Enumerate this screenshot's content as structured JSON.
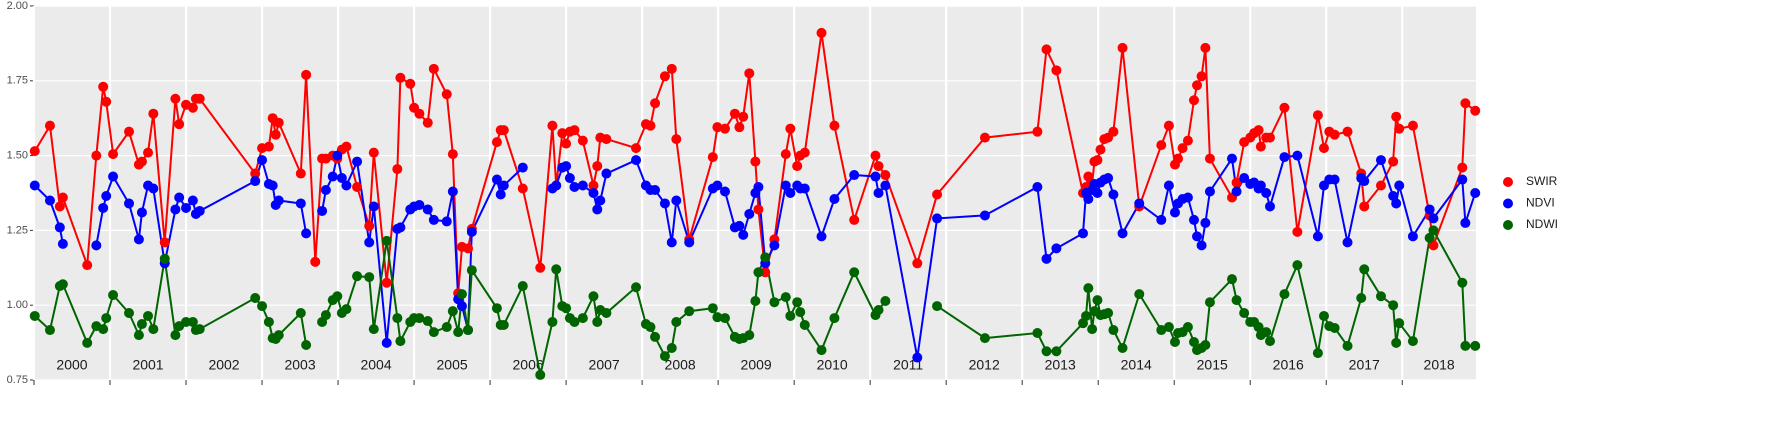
{
  "chart_data": {
    "type": "line",
    "x": [
      2000.01,
      2000.21,
      2000.34,
      2000.38,
      2000.7,
      2000.82,
      2000.91,
      2000.95,
      2001.04,
      2001.25,
      2001.38,
      2001.42,
      2001.5,
      2001.57,
      2001.72,
      2001.86,
      2001.91,
      2002.0,
      2002.09,
      2002.13,
      2002.18,
      2002.91,
      2003.0,
      2003.09,
      2003.14,
      2003.18,
      2003.22,
      2003.51,
      2003.58,
      2003.7,
      2003.79,
      2003.84,
      2003.93,
      2003.99,
      2004.05,
      2004.11,
      2004.25,
      2004.41,
      2004.47,
      2004.64,
      2004.78,
      2004.82,
      2004.95,
      2005.0,
      2005.07,
      2005.18,
      2005.26,
      2005.43,
      2005.51,
      2005.58,
      2005.63,
      2005.71,
      2005.76,
      2006.09,
      2006.14,
      2006.18,
      2006.43,
      2006.66,
      2006.82,
      2006.87,
      2006.95,
      2007.0,
      2007.05,
      2007.11,
      2007.22,
      2007.36,
      2007.41,
      2007.45,
      2007.53,
      2007.92,
      2008.05,
      2008.11,
      2008.17,
      2008.3,
      2008.39,
      2008.45,
      2008.62,
      2008.93,
      2008.99,
      2009.09,
      2009.22,
      2009.28,
      2009.33,
      2009.41,
      2009.49,
      2009.53,
      2009.62,
      2009.74,
      2009.89,
      2009.95,
      2010.04,
      2010.08,
      2010.14,
      2010.36,
      2010.53,
      2010.79,
      2011.07,
      2011.11,
      2011.2,
      2011.62,
      2011.88,
      2012.51,
      2013.2,
      2013.32,
      2013.45,
      2013.8,
      2013.84,
      2013.87,
      2013.92,
      2013.95,
      2013.99,
      2014.03,
      2014.08,
      2014.13,
      2014.2,
      2014.32,
      2014.54,
      2014.83,
      2014.93,
      2015.01,
      2015.05,
      2015.11,
      2015.18,
      2015.26,
      2015.3,
      2015.36,
      2015.41,
      2015.47,
      2015.76,
      2015.82,
      2015.92,
      2016.0,
      2016.05,
      2016.11,
      2016.14,
      2016.21,
      2016.26,
      2016.45,
      2016.62,
      2016.89,
      2016.97,
      2017.04,
      2017.11,
      2017.28,
      2017.46,
      2017.5,
      2017.72,
      2017.88,
      2017.92,
      2017.96,
      2018.14,
      2018.36,
      2018.41,
      2018.79,
      2018.83,
      2018.96
    ],
    "series": [
      {
        "name": "SWIR",
        "color": "#ff0000",
        "values": [
          1.515,
          1.6,
          1.33,
          1.36,
          1.134,
          1.5,
          1.73,
          1.68,
          1.505,
          1.58,
          1.47,
          1.48,
          1.51,
          1.64,
          1.21,
          1.69,
          1.605,
          1.67,
          1.66,
          1.69,
          1.69,
          1.44,
          1.525,
          1.53,
          1.625,
          1.57,
          1.61,
          1.44,
          1.77,
          1.145,
          1.49,
          1.49,
          1.5,
          1.49,
          1.52,
          1.53,
          1.395,
          1.265,
          1.51,
          1.075,
          1.455,
          1.76,
          1.74,
          1.66,
          1.64,
          1.61,
          1.79,
          1.705,
          1.505,
          1.04,
          1.195,
          1.19,
          1.255,
          1.545,
          1.585,
          1.585,
          1.39,
          1.125,
          1.6,
          1.4,
          1.575,
          1.54,
          1.58,
          1.585,
          1.55,
          1.4,
          1.465,
          1.56,
          1.555,
          1.525,
          1.605,
          1.6,
          1.675,
          1.765,
          1.79,
          1.555,
          1.22,
          1.495,
          1.595,
          1.59,
          1.64,
          1.595,
          1.63,
          1.775,
          1.48,
          1.32,
          1.11,
          1.22,
          1.505,
          1.59,
          1.465,
          1.5,
          1.51,
          1.91,
          1.6,
          1.285,
          1.5,
          1.465,
          1.435,
          1.14,
          1.37,
          1.56,
          1.58,
          1.855,
          1.785,
          1.375,
          1.395,
          1.43,
          1.405,
          1.48,
          1.485,
          1.52,
          1.555,
          1.56,
          1.58,
          1.86,
          1.33,
          1.535,
          1.6,
          1.47,
          1.49,
          1.525,
          1.55,
          1.685,
          1.735,
          1.765,
          1.86,
          1.49,
          1.36,
          1.41,
          1.545,
          1.56,
          1.575,
          1.585,
          1.53,
          1.56,
          1.56,
          1.66,
          1.245,
          1.635,
          1.525,
          1.58,
          1.57,
          1.58,
          1.44,
          1.33,
          1.4,
          1.48,
          1.63,
          1.59,
          1.6,
          1.3,
          1.2,
          1.46,
          1.675,
          1.65
        ]
      },
      {
        "name": "NDVI",
        "color": "#0000ff",
        "values": [
          1.4,
          1.35,
          1.26,
          1.205,
          null,
          1.2,
          1.325,
          1.365,
          1.43,
          1.34,
          1.22,
          1.31,
          1.4,
          1.39,
          1.14,
          1.32,
          1.36,
          1.325,
          1.35,
          1.305,
          1.315,
          1.415,
          1.485,
          1.405,
          1.4,
          1.335,
          1.35,
          1.34,
          1.24,
          null,
          1.315,
          1.385,
          1.43,
          1.5,
          1.425,
          1.4,
          1.48,
          1.21,
          1.33,
          0.874,
          1.255,
          1.26,
          1.32,
          1.33,
          1.335,
          1.32,
          1.285,
          1.28,
          1.38,
          1.02,
          0.997,
          0.917,
          1.245,
          1.42,
          1.37,
          1.4,
          1.46,
          null,
          1.39,
          1.4,
          1.46,
          1.465,
          1.425,
          1.395,
          1.4,
          1.375,
          1.32,
          1.35,
          1.44,
          1.485,
          1.4,
          1.385,
          1.385,
          1.34,
          1.21,
          1.35,
          1.21,
          1.39,
          1.4,
          1.38,
          1.26,
          1.265,
          1.235,
          1.305,
          1.375,
          1.395,
          1.14,
          1.2,
          1.4,
          1.375,
          1.4,
          1.39,
          1.39,
          1.23,
          1.355,
          1.435,
          1.43,
          1.375,
          1.4,
          0.825,
          1.29,
          1.3,
          1.395,
          1.155,
          1.19,
          1.24,
          1.375,
          1.355,
          1.385,
          1.405,
          1.375,
          1.41,
          1.42,
          1.425,
          1.37,
          1.24,
          1.34,
          1.285,
          1.4,
          1.31,
          1.34,
          1.355,
          1.36,
          1.285,
          1.23,
          1.2,
          1.275,
          1.38,
          1.49,
          1.38,
          1.425,
          1.405,
          1.41,
          1.39,
          1.4,
          1.375,
          1.33,
          1.495,
          1.5,
          1.23,
          1.4,
          1.42,
          1.42,
          1.21,
          1.425,
          1.415,
          1.485,
          1.365,
          1.34,
          1.4,
          1.23,
          1.32,
          1.29,
          1.42,
          1.275,
          1.375
        ]
      },
      {
        "name": "NDWI",
        "color": "#006400",
        "values": [
          0.964,
          0.917,
          1.064,
          1.07,
          0.874,
          0.93,
          0.92,
          0.957,
          1.034,
          0.974,
          0.9,
          0.937,
          0.964,
          0.92,
          1.155,
          0.9,
          0.93,
          0.944,
          0.944,
          0.917,
          0.92,
          1.024,
          0.997,
          0.944,
          0.89,
          0.887,
          0.9,
          0.974,
          0.867,
          null,
          0.944,
          0.967,
          1.017,
          1.03,
          0.974,
          0.987,
          1.097,
          1.094,
          0.92,
          1.215,
          0.957,
          0.88,
          0.944,
          0.957,
          0.957,
          0.947,
          0.91,
          0.927,
          0.98,
          0.91,
          1.037,
          0.917,
          1.117,
          0.99,
          0.934,
          0.934,
          1.064,
          0.767,
          0.944,
          1.12,
          0.997,
          0.99,
          0.957,
          0.944,
          0.957,
          1.03,
          0.944,
          0.984,
          0.974,
          1.06,
          0.937,
          0.927,
          0.894,
          0.83,
          0.857,
          0.944,
          0.98,
          0.99,
          0.96,
          0.957,
          0.894,
          0.887,
          0.89,
          0.9,
          1.014,
          1.11,
          1.16,
          1.01,
          1.027,
          0.964,
          1.01,
          0.977,
          0.934,
          0.85,
          0.957,
          1.11,
          0.967,
          0.984,
          1.014,
          null,
          0.997,
          0.89,
          0.907,
          0.846,
          0.846,
          0.94,
          0.964,
          1.057,
          0.92,
          0.98,
          1.017,
          0.967,
          0.97,
          0.974,
          0.917,
          0.857,
          1.037,
          0.917,
          0.927,
          0.877,
          0.907,
          0.91,
          0.927,
          0.877,
          0.85,
          0.857,
          0.867,
          1.01,
          1.087,
          1.017,
          0.974,
          0.944,
          0.944,
          0.927,
          0.9,
          0.91,
          0.88,
          1.037,
          1.134,
          0.84,
          0.964,
          0.93,
          0.924,
          0.864,
          1.024,
          1.12,
          1.03,
          1.0,
          0.874,
          0.94,
          0.88,
          1.225,
          1.25,
          1.075,
          0.864,
          0.864
        ]
      }
    ],
    "xlim": [
      2000,
      2018.97
    ],
    "xticks": [
      {
        "value": 2000,
        "label": "2000"
      },
      {
        "value": 2001,
        "label": "2001"
      },
      {
        "value": 2002,
        "label": "2002"
      },
      {
        "value": 2003,
        "label": "2003"
      },
      {
        "value": 2004,
        "label": "2004"
      },
      {
        "value": 2005,
        "label": "2005"
      },
      {
        "value": 2006,
        "label": "2006"
      },
      {
        "value": 2007,
        "label": "2007"
      },
      {
        "value": 2008,
        "label": "2008"
      },
      {
        "value": 2009,
        "label": "2009"
      },
      {
        "value": 2010,
        "label": "2010"
      },
      {
        "value": 2011,
        "label": "2011"
      },
      {
        "value": 2012,
        "label": "2012"
      },
      {
        "value": 2013,
        "label": "2013"
      },
      {
        "value": 2014,
        "label": "2014"
      },
      {
        "value": 2015,
        "label": "2015"
      },
      {
        "value": 2016,
        "label": "2016"
      },
      {
        "value": 2017,
        "label": "2017"
      },
      {
        "value": 2018,
        "label": "2018"
      }
    ],
    "ylim": [
      0.75,
      2.0
    ],
    "yticks": [
      {
        "value": 0.75,
        "label": "0.75"
      },
      {
        "value": 1.0,
        "label": "1.00"
      },
      {
        "value": 1.25,
        "label": "1.25"
      },
      {
        "value": 1.5,
        "label": "1.50"
      },
      {
        "value": 1.75,
        "label": "1.75"
      },
      {
        "value": 2.0,
        "label": "2.00"
      }
    ],
    "grid": true,
    "legend": "right"
  }
}
